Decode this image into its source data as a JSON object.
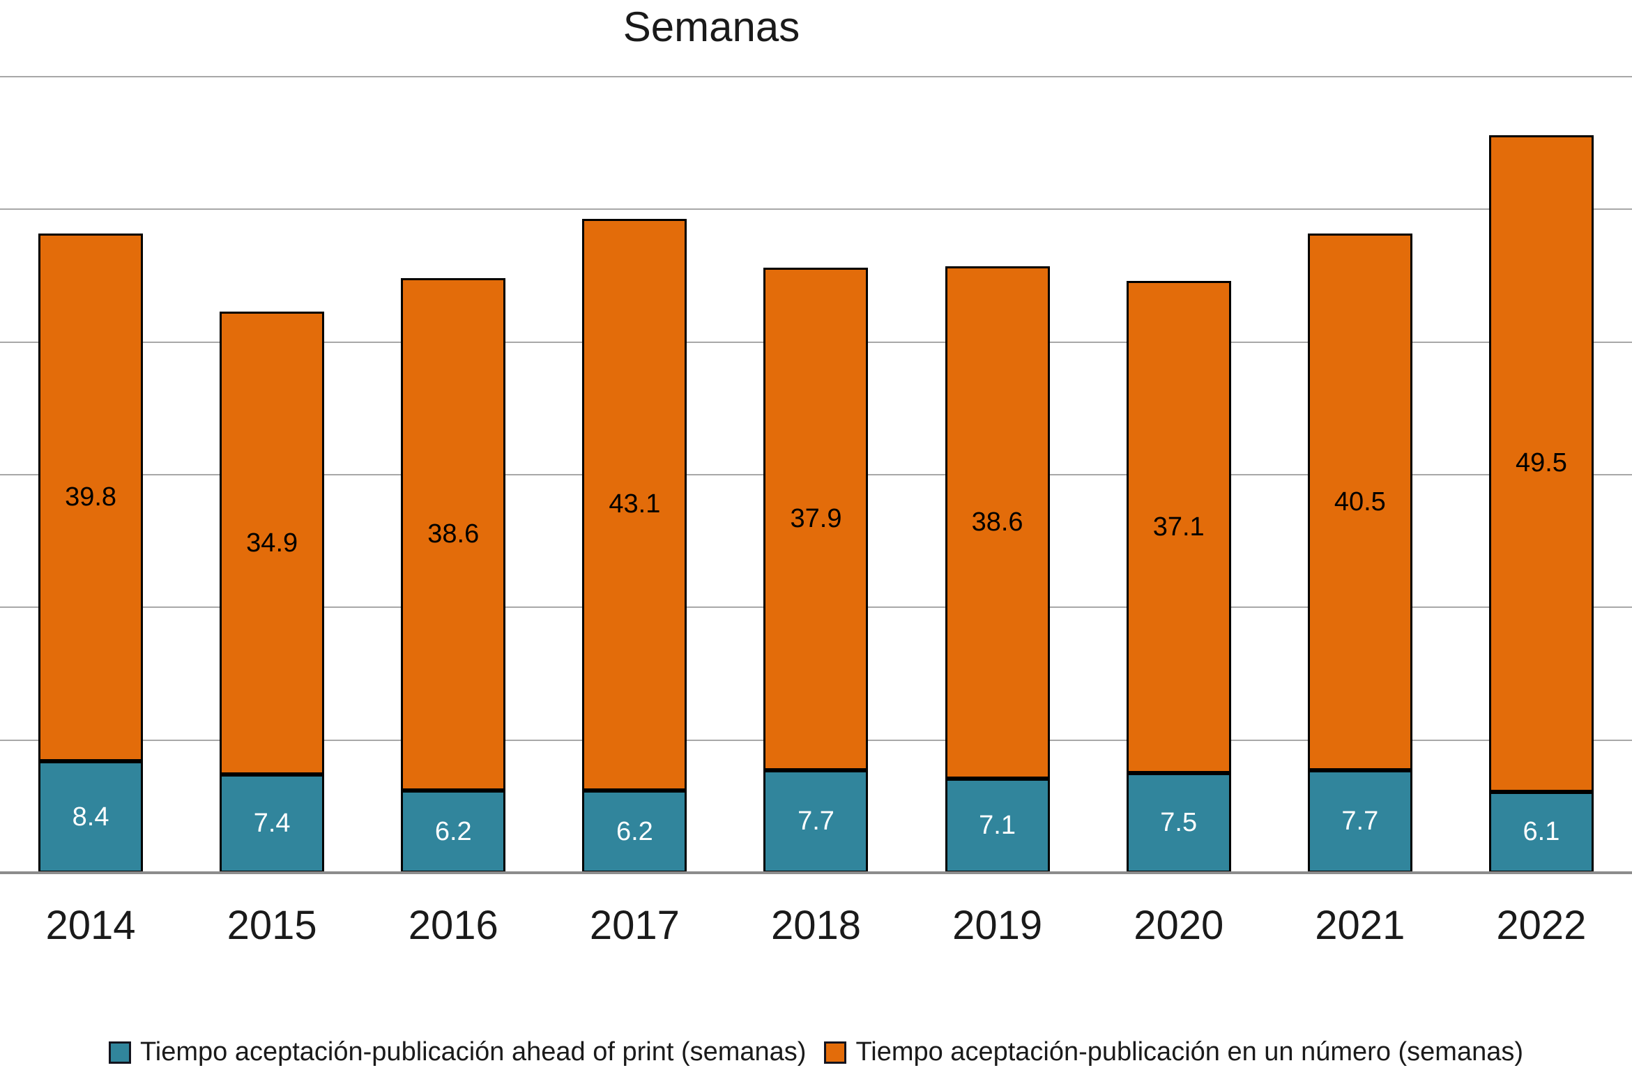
{
  "chart_data": {
    "type": "bar",
    "stacked": true,
    "title": "Semanas",
    "categories": [
      "2014",
      "2015",
      "2016",
      "2017",
      "2018",
      "2019",
      "2020",
      "2021",
      "2022"
    ],
    "series": [
      {
        "name": "Tiempo aceptación-publicación ahead of print (semanas)",
        "color": "#31859C",
        "label_color": "#ffffff",
        "values": [
          8.4,
          7.4,
          6.2,
          6.2,
          7.7,
          7.1,
          7.5,
          7.7,
          6.1
        ]
      },
      {
        "name": "Tiempo aceptación-publicación en un número (semanas)",
        "color": "#E36C0A",
        "label_color": "#000000",
        "values": [
          39.8,
          34.9,
          38.6,
          43.1,
          37.9,
          38.6,
          37.1,
          40.5,
          49.5
        ]
      }
    ],
    "ylim": [
      0,
      60
    ],
    "grid_step": 10,
    "grid": true,
    "y_tick_labels_visible": false,
    "legend_position": "bottom",
    "bar_border_color": "#000000",
    "grid_color": "#a8a8a8",
    "axis_line_color": "#8c8c8c"
  }
}
